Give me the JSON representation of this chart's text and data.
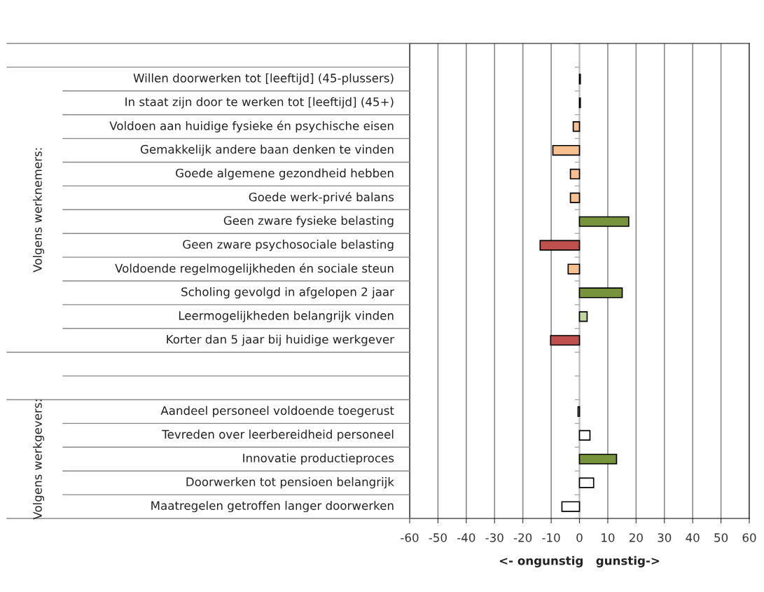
{
  "chart_data": {
    "type": "bar",
    "orientation": "horizontal",
    "categories": [
      null,
      "Willen doorwerken tot [leeftijd] (45-plussers)",
      "In staat zijn door te werken tot [leeftijd] (45+)",
      "Voldoen aan huidige fysieke én psychische eisen",
      "Gemakkelijk andere baan denken te vinden",
      "Goede algemene gezondheid hebben",
      "Goede werk-privé balans",
      "Geen zware fysieke belasting",
      "Geen zware psychosociale belasting",
      "Voldoende regelmogelijkheden én sociale steun",
      "Scholing gevolgd in afgelopen 2 jaar",
      "Leermogelijkheden belangrijk vinden",
      "Korter dan 5 jaar bij huidige werkgever",
      null,
      null,
      "Aandeel personeel voldoende toegerust",
      "Tevreden over leerbereidheid personeel",
      "Innovatie productieproces",
      "Doorwerken tot pensioen belangrijk",
      "Maatregelen getroffen langer doorwerken"
    ],
    "values": [
      null,
      0.3,
      0.3,
      -2.2,
      -9.4,
      -3.2,
      -3.2,
      17.4,
      -13.9,
      -4.0,
      15.1,
      2.7,
      -10.2,
      null,
      null,
      -0.5,
      3.7,
      13.1,
      5.0,
      -6.2
    ],
    "colors": [
      "#ffffff",
      "#ffffff",
      "#ffffff",
      "#f9c08f",
      "#f9c08f",
      "#f9c08f",
      "#f9c08f",
      "#77933c",
      "#c0504d",
      "#f9c08f",
      "#77933c",
      "#c3d69b",
      "#c0504d",
      "#ffffff",
      "#ffffff",
      "#ffffff",
      "#ffffff",
      "#77933c",
      "#ffffff",
      "#ffffff"
    ],
    "xlabel": "<- ongunstig   gunstig->",
    "xlim": [
      -60,
      60
    ],
    "xticks": [
      -60,
      -50,
      -40,
      -30,
      -20,
      -10,
      0,
      10,
      20,
      30,
      40,
      50,
      60
    ],
    "grid": "x",
    "annotations": [
      "Volgens werknemers:",
      "Volgens werkgevers:"
    ]
  }
}
